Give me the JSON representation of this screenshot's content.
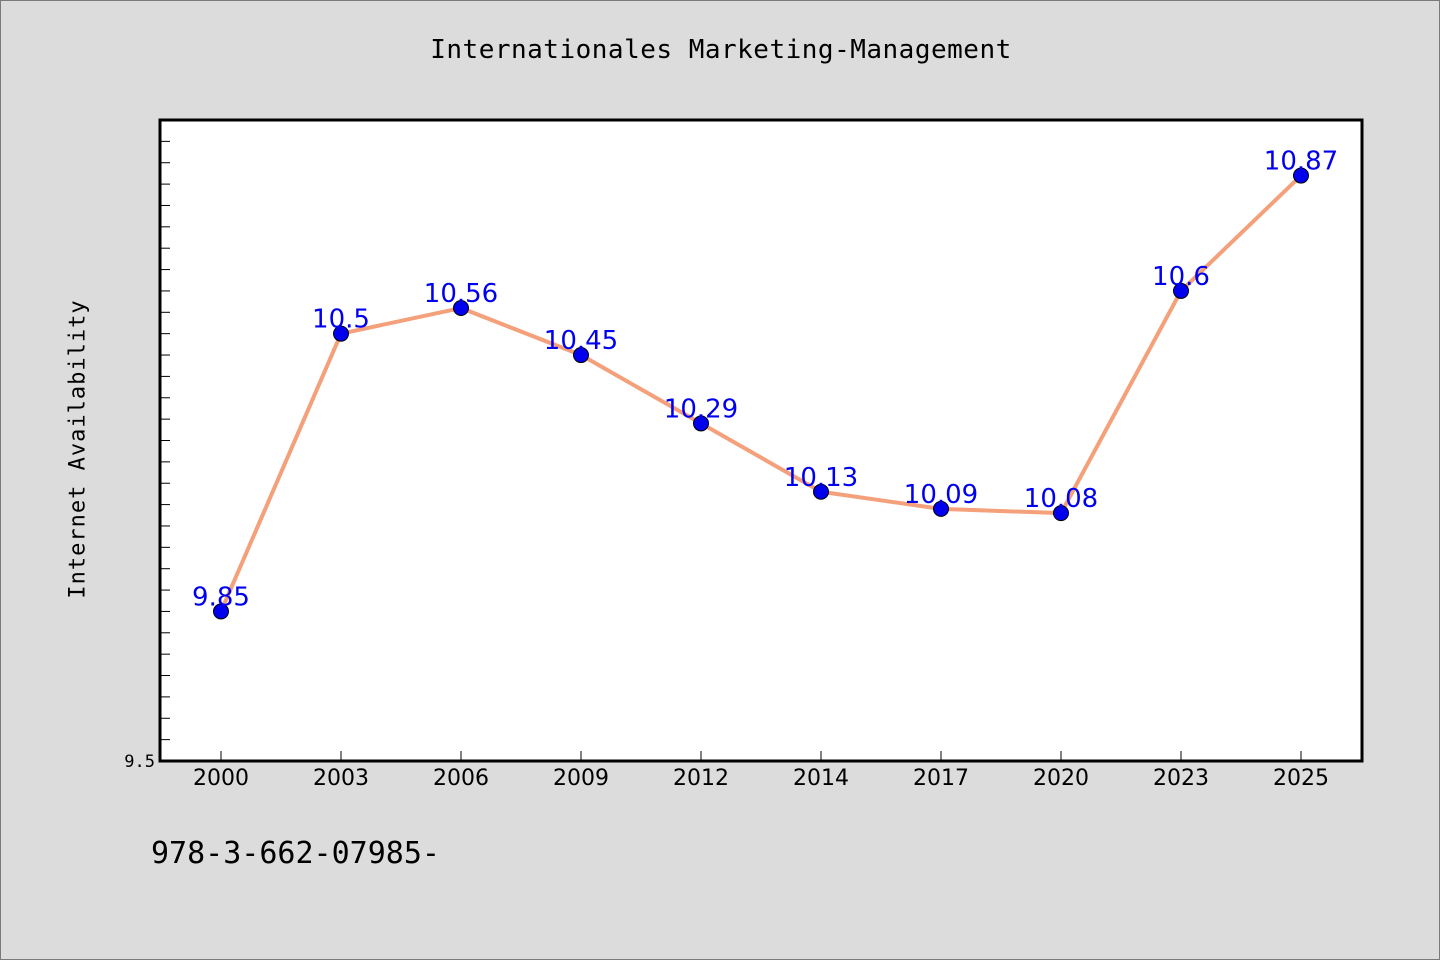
{
  "chart_data": {
    "type": "line",
    "title": "Internationales Marketing-Management",
    "xlabel": "",
    "ylabel": "Internet Availability",
    "categories": [
      "2000",
      "2003",
      "2006",
      "2009",
      "2012",
      "2014",
      "2017",
      "2020",
      "2023",
      "2025"
    ],
    "series": [
      {
        "values": [
          9.85,
          10.5,
          10.56,
          10.45,
          10.29,
          10.13,
          10.09,
          10.08,
          10.6,
          10.87
        ]
      }
    ],
    "data_labels": [
      "9.85",
      "10.5",
      "10.56",
      "10.45",
      "10.29",
      "10.13",
      "10.09",
      "10.08",
      "10.6",
      "10.87"
    ],
    "ylim": [
      9.5,
      11.0
    ],
    "ytick_labels": [
      "9.5"
    ],
    "grid": false,
    "colors": {
      "line": "#f4a07a",
      "marker": "#0000ee",
      "data_label": "#0000ee",
      "plot_background": "#ffffff",
      "figure_background": "#dcdcdc"
    }
  },
  "footnote": "978-3-662-07985-"
}
